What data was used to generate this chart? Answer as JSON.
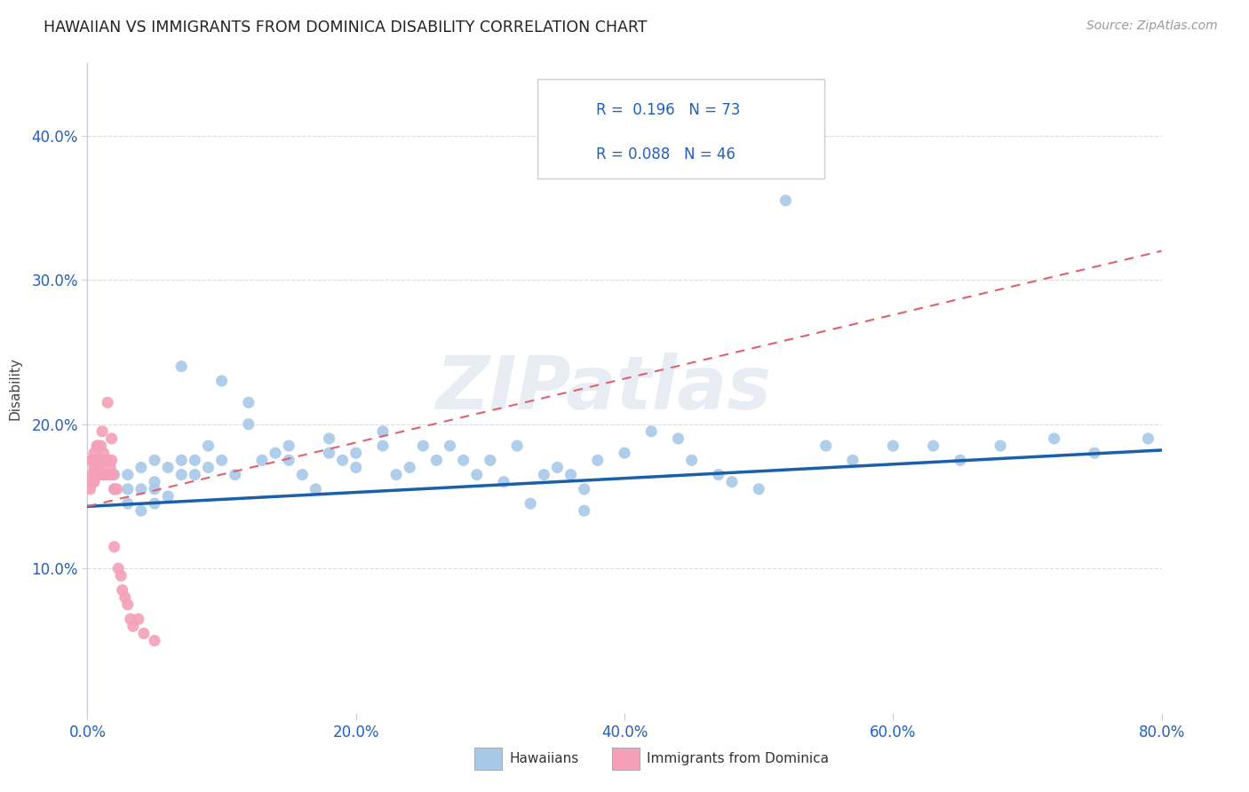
{
  "title": "HAWAIIAN VS IMMIGRANTS FROM DOMINICA DISABILITY CORRELATION CHART",
  "source_text": "Source: ZipAtlas.com",
  "xlabel_hawaiians": "Hawaiians",
  "xlabel_dominica": "Immigrants from Dominica",
  "ylabel": "Disability",
  "R_hawaiians": 0.196,
  "N_hawaiians": 73,
  "R_dominica": 0.088,
  "N_dominica": 46,
  "xmin": 0.0,
  "xmax": 0.8,
  "ymin": 0.0,
  "ymax": 0.45,
  "yticks": [
    0.1,
    0.2,
    0.3,
    0.4
  ],
  "xticks": [
    0.0,
    0.2,
    0.4,
    0.6,
    0.8
  ],
  "color_hawaiians": "#a8c8e8",
  "color_dominica": "#f4a0b8",
  "line_color_hawaiians": "#1a5fa8",
  "line_color_dominica": "#e06070",
  "background_color": "#ffffff",
  "grid_color": "#d8dde8",
  "watermark_text": "ZIPatlas",
  "hawaiians_x": [
    0.02,
    0.02,
    0.03,
    0.03,
    0.03,
    0.04,
    0.04,
    0.04,
    0.05,
    0.05,
    0.05,
    0.05,
    0.06,
    0.06,
    0.07,
    0.07,
    0.07,
    0.08,
    0.08,
    0.09,
    0.09,
    0.1,
    0.1,
    0.11,
    0.12,
    0.12,
    0.13,
    0.14,
    0.15,
    0.15,
    0.16,
    0.17,
    0.18,
    0.18,
    0.19,
    0.2,
    0.2,
    0.22,
    0.22,
    0.23,
    0.24,
    0.25,
    0.26,
    0.27,
    0.28,
    0.29,
    0.3,
    0.31,
    0.32,
    0.33,
    0.34,
    0.35,
    0.36,
    0.37,
    0.38,
    0.4,
    0.42,
    0.44,
    0.45,
    0.47,
    0.48,
    0.5,
    0.52,
    0.37,
    0.55,
    0.57,
    0.6,
    0.63,
    0.65,
    0.68,
    0.72,
    0.75,
    0.79
  ],
  "hawaiians_y": [
    0.155,
    0.165,
    0.145,
    0.155,
    0.165,
    0.14,
    0.155,
    0.17,
    0.145,
    0.155,
    0.16,
    0.175,
    0.15,
    0.17,
    0.165,
    0.175,
    0.24,
    0.165,
    0.175,
    0.17,
    0.185,
    0.175,
    0.23,
    0.165,
    0.2,
    0.215,
    0.175,
    0.18,
    0.175,
    0.185,
    0.165,
    0.155,
    0.18,
    0.19,
    0.175,
    0.17,
    0.18,
    0.185,
    0.195,
    0.165,
    0.17,
    0.185,
    0.175,
    0.185,
    0.175,
    0.165,
    0.175,
    0.16,
    0.185,
    0.145,
    0.165,
    0.17,
    0.165,
    0.155,
    0.175,
    0.18,
    0.195,
    0.19,
    0.175,
    0.165,
    0.16,
    0.155,
    0.355,
    0.14,
    0.185,
    0.175,
    0.185,
    0.185,
    0.175,
    0.185,
    0.19,
    0.18,
    0.19
  ],
  "dominica_x": [
    0.002,
    0.003,
    0.003,
    0.004,
    0.004,
    0.005,
    0.005,
    0.005,
    0.006,
    0.006,
    0.007,
    0.007,
    0.008,
    0.008,
    0.008,
    0.009,
    0.009,
    0.01,
    0.01,
    0.01,
    0.011,
    0.011,
    0.012,
    0.012,
    0.013,
    0.014,
    0.015,
    0.015,
    0.016,
    0.017,
    0.018,
    0.018,
    0.019,
    0.02,
    0.02,
    0.022,
    0.023,
    0.025,
    0.026,
    0.028,
    0.03,
    0.032,
    0.034,
    0.038,
    0.042,
    0.05
  ],
  "dominica_y": [
    0.155,
    0.165,
    0.175,
    0.16,
    0.175,
    0.17,
    0.16,
    0.18,
    0.165,
    0.175,
    0.17,
    0.185,
    0.175,
    0.165,
    0.185,
    0.17,
    0.175,
    0.165,
    0.175,
    0.185,
    0.175,
    0.195,
    0.165,
    0.18,
    0.175,
    0.165,
    0.175,
    0.215,
    0.165,
    0.17,
    0.175,
    0.19,
    0.165,
    0.155,
    0.115,
    0.155,
    0.1,
    0.095,
    0.085,
    0.08,
    0.075,
    0.065,
    0.06,
    0.065,
    0.055,
    0.05
  ],
  "h_line_x0": 0.0,
  "h_line_y0": 0.143,
  "h_line_x1": 0.8,
  "h_line_y1": 0.182,
  "d_line_x0": 0.0,
  "d_line_y0": 0.143,
  "d_line_x1": 0.8,
  "d_line_y1": 0.32
}
